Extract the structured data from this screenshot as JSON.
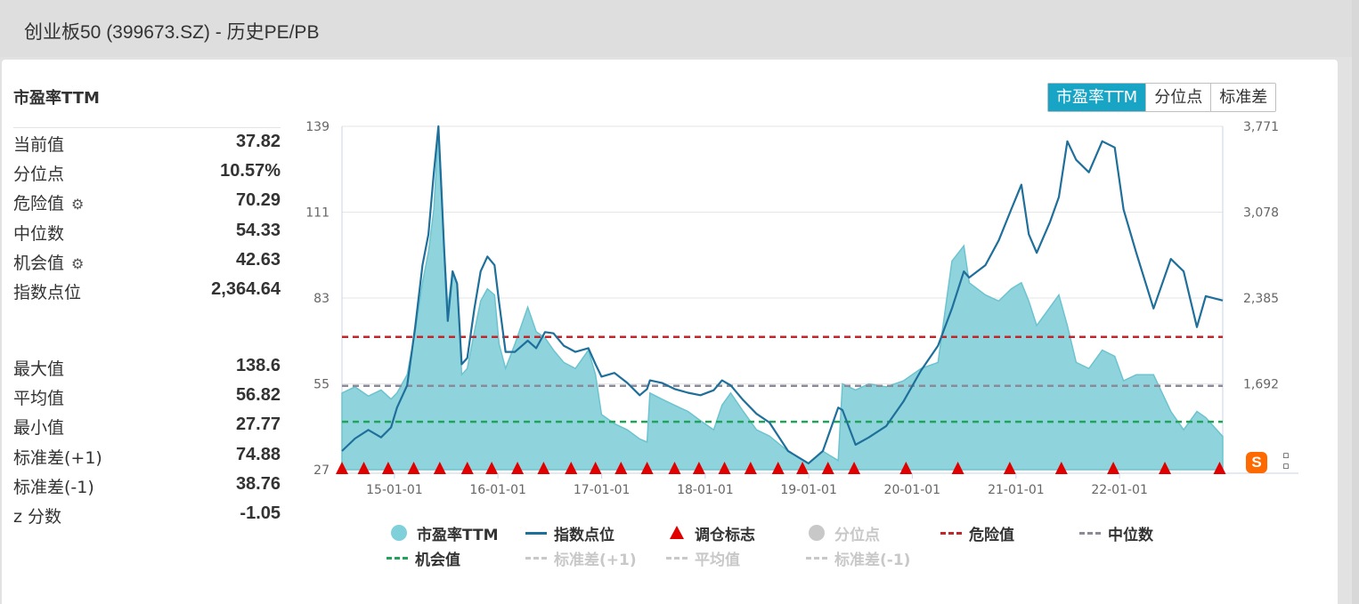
{
  "header": {
    "title": "创业板50 (399673.SZ) - 历史PE/PB"
  },
  "panel": {
    "title": "市盈率TTM",
    "stats1": [
      {
        "label": "当前值",
        "value": "37.82",
        "gear": false
      },
      {
        "label": "分位点",
        "value": "10.57%",
        "gear": false
      },
      {
        "label": "危险值",
        "value": "70.29",
        "gear": true
      },
      {
        "label": "中位数",
        "value": "54.33",
        "gear": false
      },
      {
        "label": "机会值",
        "value": "42.63",
        "gear": true
      },
      {
        "label": "指数点位",
        "value": "2,364.64",
        "gear": false
      }
    ],
    "stats2": [
      {
        "label": "最大值",
        "value": "138.6"
      },
      {
        "label": "平均值",
        "value": "56.82"
      },
      {
        "label": "最小值",
        "value": "27.77"
      },
      {
        "label": "标准差(+1)",
        "value": "74.88"
      },
      {
        "label": "标准差(-1)",
        "value": "38.76"
      },
      {
        "label": "z 分数",
        "value": "-1.05"
      }
    ]
  },
  "tabs": [
    {
      "label": "市盈率TTM",
      "active": true
    },
    {
      "label": "分位点",
      "active": false
    },
    {
      "label": "标准差",
      "active": false
    }
  ],
  "toolbar": {
    "sogou_icon": "sogou-s-icon",
    "tool_icon": "crop-icon"
  },
  "colors": {
    "pe_fill": "#8fd4dd",
    "pe_line": "#6cc3cf",
    "index_line": "#1f6f9b",
    "danger": "#c0272d",
    "median": "#8a8a99",
    "opportunity": "#22a35a",
    "marker": "#e00000",
    "disabled": "#c8c8c8"
  },
  "chart_data": {
    "type": "line",
    "title": "",
    "left_axis": {
      "ticks": [
        "139",
        "111",
        "83",
        "55",
        "27"
      ],
      "ylim": [
        27,
        139
      ]
    },
    "right_axis": {
      "ticks": [
        "3,771",
        "3,078",
        "2,385",
        "1,692"
      ],
      "ylim": [
        999,
        3771
      ]
    },
    "x_ticks": [
      "15-01-01",
      "16-01-01",
      "17-01-01",
      "18-01-01",
      "19-01-01",
      "20-01-01",
      "21-01-01",
      "22-01-01"
    ],
    "x_range": [
      "2014-06-30",
      "2022-12-31"
    ],
    "reference_lines": [
      {
        "name": "危险值",
        "value": 70.29
      },
      {
        "name": "中位数",
        "value": 54.33
      },
      {
        "name": "机会值",
        "value": 42.63
      }
    ],
    "series": [
      {
        "name": "市盈率TTM",
        "type": "area",
        "axis": "left",
        "points": [
          [
            "2014-06-30",
            52
          ],
          [
            "2014-08-15",
            54
          ],
          [
            "2014-10-01",
            51
          ],
          [
            "2014-11-15",
            53
          ],
          [
            "2014-12-20",
            50
          ],
          [
            "2015-01-10",
            52
          ],
          [
            "2015-02-15",
            58
          ],
          [
            "2015-03-15",
            72
          ],
          [
            "2015-04-10",
            88
          ],
          [
            "2015-05-01",
            98
          ],
          [
            "2015-05-20",
            112
          ],
          [
            "2015-06-05",
            138.6
          ],
          [
            "2015-06-15",
            122
          ],
          [
            "2015-06-25",
            100
          ],
          [
            "2015-07-08",
            80
          ],
          [
            "2015-07-25",
            92
          ],
          [
            "2015-08-10",
            88
          ],
          [
            "2015-08-26",
            58
          ],
          [
            "2015-09-15",
            60
          ],
          [
            "2015-10-10",
            72
          ],
          [
            "2015-11-01",
            82
          ],
          [
            "2015-11-25",
            86
          ],
          [
            "2015-12-20",
            84
          ],
          [
            "2016-01-05",
            68
          ],
          [
            "2016-01-28",
            60
          ],
          [
            "2016-03-01",
            68
          ],
          [
            "2016-04-15",
            80
          ],
          [
            "2016-05-15",
            72
          ],
          [
            "2016-06-15",
            70
          ],
          [
            "2016-07-15",
            66
          ],
          [
            "2016-08-20",
            62
          ],
          [
            "2016-09-30",
            60
          ],
          [
            "2016-11-15",
            66
          ],
          [
            "2016-12-10",
            58
          ],
          [
            "2016-12-31",
            45
          ],
          [
            "2017-02-15",
            42
          ],
          [
            "2017-04-01",
            40
          ],
          [
            "2017-05-15",
            37
          ],
          [
            "2017-06-10",
            36
          ],
          [
            "2017-06-20",
            52
          ],
          [
            "2017-08-01",
            50
          ],
          [
            "2017-09-15",
            48
          ],
          [
            "2017-11-01",
            46
          ],
          [
            "2017-12-15",
            43
          ],
          [
            "2018-01-31",
            40
          ],
          [
            "2018-03-01",
            48
          ],
          [
            "2018-04-01",
            52
          ],
          [
            "2018-05-15",
            46
          ],
          [
            "2018-07-01",
            40
          ],
          [
            "2018-08-15",
            38
          ],
          [
            "2018-10-20",
            33
          ],
          [
            "2018-12-31",
            29
          ],
          [
            "2019-02-20",
            33
          ],
          [
            "2019-04-15",
            30
          ],
          [
            "2019-04-30",
            55
          ],
          [
            "2019-06-15",
            53
          ],
          [
            "2019-08-01",
            55
          ],
          [
            "2019-10-01",
            54
          ],
          [
            "2019-12-01",
            56
          ],
          [
            "2020-02-01",
            60
          ],
          [
            "2020-04-01",
            62
          ],
          [
            "2020-05-20",
            95
          ],
          [
            "2020-07-01",
            100
          ],
          [
            "2020-07-20",
            88
          ],
          [
            "2020-09-15",
            84
          ],
          [
            "2020-11-01",
            82
          ],
          [
            "2020-12-15",
            86
          ],
          [
            "2021-01-20",
            88
          ],
          [
            "2021-02-15",
            82
          ],
          [
            "2021-03-15",
            74
          ],
          [
            "2021-05-01",
            80
          ],
          [
            "2021-06-01",
            84
          ],
          [
            "2021-07-01",
            74
          ],
          [
            "2021-08-01",
            62
          ],
          [
            "2021-09-15",
            60
          ],
          [
            "2021-11-01",
            66
          ],
          [
            "2021-12-15",
            64
          ],
          [
            "2022-01-15",
            56
          ],
          [
            "2022-03-01",
            58
          ],
          [
            "2022-05-01",
            58
          ],
          [
            "2022-07-01",
            46
          ],
          [
            "2022-08-15",
            40
          ],
          [
            "2022-10-01",
            46
          ],
          [
            "2022-11-01",
            44
          ],
          [
            "2022-12-31",
            37.82
          ]
        ]
      },
      {
        "name": "指数点位",
        "type": "line",
        "axis": "right",
        "points": [
          [
            "2014-06-30",
            1150
          ],
          [
            "2014-08-15",
            1250
          ],
          [
            "2014-10-01",
            1320
          ],
          [
            "2014-11-15",
            1260
          ],
          [
            "2014-12-20",
            1340
          ],
          [
            "2015-01-10",
            1500
          ],
          [
            "2015-02-15",
            1680
          ],
          [
            "2015-03-15",
            2150
          ],
          [
            "2015-04-10",
            2650
          ],
          [
            "2015-05-01",
            2900
          ],
          [
            "2015-05-20",
            3400
          ],
          [
            "2015-06-05",
            3771
          ],
          [
            "2015-06-15",
            3300
          ],
          [
            "2015-06-25",
            2800
          ],
          [
            "2015-07-08",
            2200
          ],
          [
            "2015-07-25",
            2600
          ],
          [
            "2015-08-10",
            2500
          ],
          [
            "2015-08-26",
            1850
          ],
          [
            "2015-09-15",
            1900
          ],
          [
            "2015-10-10",
            2300
          ],
          [
            "2015-11-01",
            2600
          ],
          [
            "2015-11-25",
            2720
          ],
          [
            "2015-12-20",
            2650
          ],
          [
            "2016-01-05",
            2350
          ],
          [
            "2016-01-28",
            1950
          ],
          [
            "2016-03-01",
            1950
          ],
          [
            "2016-04-15",
            2040
          ],
          [
            "2016-05-15",
            1980
          ],
          [
            "2016-06-15",
            2110
          ],
          [
            "2016-07-15",
            2100
          ],
          [
            "2016-08-20",
            2000
          ],
          [
            "2016-09-30",
            1950
          ],
          [
            "2016-11-15",
            1980
          ],
          [
            "2016-12-10",
            1850
          ],
          [
            "2016-12-31",
            1750
          ],
          [
            "2017-02-15",
            1780
          ],
          [
            "2017-04-01",
            1700
          ],
          [
            "2017-05-15",
            1600
          ],
          [
            "2017-06-10",
            1650
          ],
          [
            "2017-06-20",
            1720
          ],
          [
            "2017-08-01",
            1700
          ],
          [
            "2017-09-15",
            1650
          ],
          [
            "2017-11-01",
            1620
          ],
          [
            "2017-12-15",
            1600
          ],
          [
            "2018-01-31",
            1640
          ],
          [
            "2018-03-01",
            1720
          ],
          [
            "2018-04-01",
            1680
          ],
          [
            "2018-05-15",
            1560
          ],
          [
            "2018-07-01",
            1450
          ],
          [
            "2018-08-15",
            1380
          ],
          [
            "2018-10-20",
            1150
          ],
          [
            "2018-12-31",
            1050
          ],
          [
            "2019-02-20",
            1150
          ],
          [
            "2019-04-15",
            1500
          ],
          [
            "2019-04-30",
            1480
          ],
          [
            "2019-06-15",
            1200
          ],
          [
            "2019-08-01",
            1260
          ],
          [
            "2019-10-01",
            1350
          ],
          [
            "2019-12-01",
            1550
          ],
          [
            "2020-02-01",
            1800
          ],
          [
            "2020-04-01",
            2000
          ],
          [
            "2020-05-20",
            2300
          ],
          [
            "2020-07-01",
            2600
          ],
          [
            "2020-07-20",
            2550
          ],
          [
            "2020-09-15",
            2650
          ],
          [
            "2020-11-01",
            2850
          ],
          [
            "2020-12-15",
            3100
          ],
          [
            "2021-01-20",
            3300
          ],
          [
            "2021-02-15",
            2900
          ],
          [
            "2021-03-15",
            2750
          ],
          [
            "2021-05-01",
            3000
          ],
          [
            "2021-06-01",
            3200
          ],
          [
            "2021-07-01",
            3650
          ],
          [
            "2021-08-01",
            3500
          ],
          [
            "2021-09-15",
            3400
          ],
          [
            "2021-11-01",
            3650
          ],
          [
            "2021-12-15",
            3600
          ],
          [
            "2022-01-15",
            3100
          ],
          [
            "2022-03-01",
            2750
          ],
          [
            "2022-05-01",
            2300
          ],
          [
            "2022-07-01",
            2700
          ],
          [
            "2022-08-15",
            2600
          ],
          [
            "2022-10-01",
            2150
          ],
          [
            "2022-11-01",
            2400
          ],
          [
            "2022-12-31",
            2364.64
          ]
        ]
      }
    ],
    "markers": {
      "name": "调仓标志",
      "dates": [
        "2014-06-30",
        "2014-09-15",
        "2014-12-10",
        "2015-03-10",
        "2015-06-10",
        "2015-09-15",
        "2015-12-10",
        "2016-03-10",
        "2016-06-10",
        "2016-09-15",
        "2016-12-10",
        "2017-03-10",
        "2017-06-10",
        "2017-09-15",
        "2017-12-10",
        "2018-03-10",
        "2018-06-10",
        "2018-09-15",
        "2018-12-10",
        "2019-03-10",
        "2019-06-10",
        "2019-12-10",
        "2020-06-10",
        "2020-12-10",
        "2021-06-10",
        "2021-12-10",
        "2022-06-10",
        "2022-12-20"
      ]
    },
    "legend": [
      {
        "label": "市盈率TTM",
        "symbol": "circle",
        "color": "#7fd0da",
        "active": true
      },
      {
        "label": "指数点位",
        "symbol": "line",
        "color": "#1f6f9b",
        "active": true
      },
      {
        "label": "调仓标志",
        "symbol": "triangle",
        "color": "#e00000",
        "active": true
      },
      {
        "label": "分位点",
        "symbol": "circle",
        "color": "#c8c8c8",
        "active": false
      },
      {
        "label": "危险值",
        "symbol": "dash",
        "color": "#c0272d",
        "active": true
      },
      {
        "label": "中位数",
        "symbol": "dash",
        "color": "#8a8a99",
        "active": true
      },
      {
        "label": "机会值",
        "symbol": "dash",
        "color": "#22a35a",
        "active": true
      },
      {
        "label": "标准差(+1)",
        "symbol": "dash",
        "color": "#c8c8c8",
        "active": false
      },
      {
        "label": "平均值",
        "symbol": "dash",
        "color": "#c8c8c8",
        "active": false
      },
      {
        "label": "标准差(-1)",
        "symbol": "dash",
        "color": "#c8c8c8",
        "active": false
      }
    ]
  }
}
